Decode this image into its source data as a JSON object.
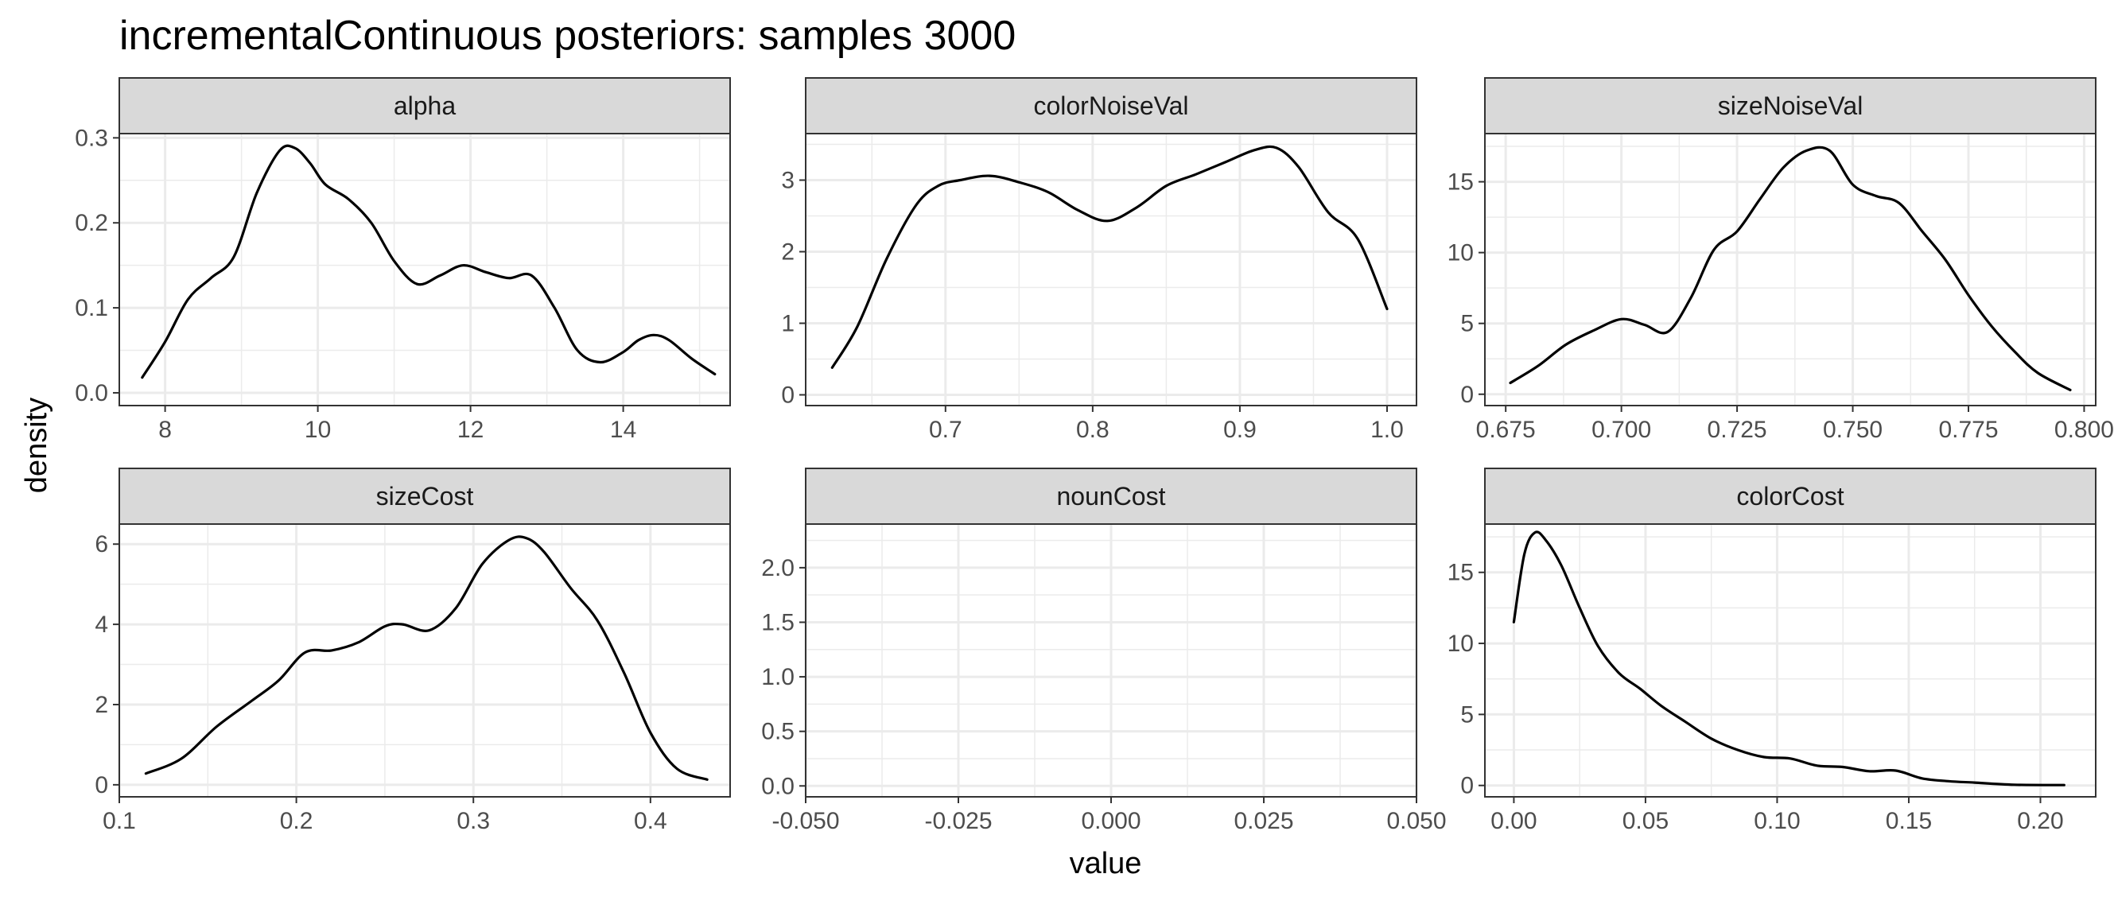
{
  "chart_data": {
    "type": "line",
    "title": "incrementalContinuous posteriors: samples 3000",
    "xlabel": "value",
    "ylabel": "density",
    "grid": true,
    "panels": [
      {
        "name": "alpha",
        "xlim": [
          7.4,
          15.4
        ],
        "ylim": [
          -0.015,
          0.305
        ],
        "xticks": [
          8,
          10,
          12,
          14
        ],
        "xtick_labels": [
          "8",
          "10",
          "12",
          "14"
        ],
        "yticks": [
          0,
          0.1,
          0.2,
          0.3
        ],
        "ytick_labels": [
          "0.0",
          "0.1",
          "0.2",
          "0.3"
        ],
        "series": [
          {
            "x": [
              7.7,
              8.0,
              8.3,
              8.6,
              8.9,
              9.2,
              9.5,
              9.7,
              9.9,
              10.1,
              10.4,
              10.7,
              11.0,
              11.3,
              11.6,
              11.9,
              12.2,
              12.5,
              12.8,
              13.1,
              13.4,
              13.7,
              14.0,
              14.2,
              14.4,
              14.6,
              14.9,
              15.2
            ],
            "y": [
              0.018,
              0.06,
              0.11,
              0.135,
              0.16,
              0.235,
              0.285,
              0.288,
              0.27,
              0.245,
              0.228,
              0.2,
              0.155,
              0.128,
              0.138,
              0.15,
              0.142,
              0.135,
              0.138,
              0.1,
              0.05,
              0.036,
              0.048,
              0.062,
              0.068,
              0.062,
              0.04,
              0.022
            ]
          }
        ]
      },
      {
        "name": "colorNoiseVal",
        "xlim": [
          0.605,
          1.02
        ],
        "ylim": [
          -0.15,
          3.65
        ],
        "xticks": [
          0.7,
          0.8,
          0.9,
          1.0
        ],
        "xtick_labels": [
          "0.7",
          "0.8",
          "0.9",
          "1.0"
        ],
        "yticks": [
          0,
          1,
          2,
          3
        ],
        "ytick_labels": [
          "0",
          "1",
          "2",
          "3"
        ],
        "series": [
          {
            "x": [
              0.623,
              0.64,
              0.66,
              0.68,
              0.695,
              0.71,
              0.73,
              0.75,
              0.77,
              0.79,
              0.81,
              0.83,
              0.85,
              0.87,
              0.89,
              0.91,
              0.925,
              0.94,
              0.96,
              0.98,
              1.0
            ],
            "y": [
              0.38,
              0.95,
              1.9,
              2.65,
              2.92,
              3.0,
              3.06,
              2.97,
              2.83,
              2.58,
              2.43,
              2.62,
              2.92,
              3.08,
              3.25,
              3.42,
              3.45,
              3.18,
              2.55,
              2.18,
              1.2
            ]
          }
        ]
      },
      {
        "name": "sizeNoiseVal",
        "xlim": [
          0.6705,
          0.8025
        ],
        "ylim": [
          -0.8,
          18.4
        ],
        "xticks": [
          0.675,
          0.7,
          0.725,
          0.75,
          0.775,
          0.8
        ],
        "xtick_labels": [
          "0.675",
          "0.700",
          "0.725",
          "0.750",
          "0.775",
          "0.800"
        ],
        "yticks": [
          0,
          5,
          10,
          15
        ],
        "ytick_labels": [
          "0",
          "5",
          "10",
          "15"
        ],
        "series": [
          {
            "x": [
              0.676,
              0.682,
              0.688,
              0.694,
              0.7,
              0.705,
              0.71,
              0.715,
              0.72,
              0.725,
              0.73,
              0.735,
              0.74,
              0.745,
              0.75,
              0.755,
              0.76,
              0.765,
              0.77,
              0.775,
              0.78,
              0.785,
              0.79,
              0.797
            ],
            "y": [
              0.8,
              2.0,
              3.5,
              4.5,
              5.3,
              4.9,
              4.4,
              6.8,
              10.2,
              11.5,
              13.8,
              16.0,
              17.2,
              17.2,
              14.8,
              14.0,
              13.5,
              11.5,
              9.5,
              7.0,
              4.8,
              3.0,
              1.5,
              0.3
            ]
          }
        ]
      },
      {
        "name": "sizeCost",
        "xlim": [
          0.1,
          0.445
        ],
        "ylim": [
          -0.3,
          6.5
        ],
        "xticks": [
          0.1,
          0.2,
          0.3,
          0.4
        ],
        "xtick_labels": [
          "0.1",
          "0.2",
          "0.3",
          "0.4"
        ],
        "yticks": [
          0,
          2,
          4,
          6
        ],
        "ytick_labels": [
          "0",
          "2",
          "4",
          "6"
        ],
        "series": [
          {
            "x": [
              0.115,
              0.135,
              0.155,
              0.175,
              0.19,
              0.205,
              0.22,
              0.235,
              0.25,
              0.26,
              0.275,
              0.29,
              0.305,
              0.32,
              0.33,
              0.34,
              0.355,
              0.37,
              0.385,
              0.4,
              0.415,
              0.432
            ],
            "y": [
              0.28,
              0.65,
              1.45,
              2.1,
              2.6,
              3.3,
              3.35,
              3.55,
              3.95,
              4.0,
              3.85,
              4.4,
              5.5,
              6.1,
              6.15,
              5.8,
              4.9,
              4.1,
              2.8,
              1.3,
              0.4,
              0.13
            ]
          }
        ]
      },
      {
        "name": "nounCost",
        "xlim": [
          -0.05,
          0.05
        ],
        "ylim": [
          -0.1,
          2.4
        ],
        "xticks": [
          -0.05,
          -0.025,
          0,
          0.025,
          0.05
        ],
        "xtick_labels": [
          "-0.050",
          "-0.025",
          "0.000",
          "0.025",
          "0.050"
        ],
        "yticks": [
          0,
          0.5,
          1.0,
          1.5,
          2.0
        ],
        "ytick_labels": [
          "0.0",
          "0.5",
          "1.0",
          "1.5",
          "2.0"
        ],
        "series": [
          {
            "x": [],
            "y": []
          }
        ]
      },
      {
        "name": "colorCost",
        "xlim": [
          -0.011,
          0.221
        ],
        "ylim": [
          -0.8,
          18.4
        ],
        "xticks": [
          0,
          0.05,
          0.1,
          0.15,
          0.2
        ],
        "xtick_labels": [
          "0.00",
          "0.05",
          "0.10",
          "0.15",
          "0.20"
        ],
        "yticks": [
          0,
          5,
          10,
          15
        ],
        "ytick_labels": [
          "0",
          "5",
          "10",
          "15"
        ],
        "series": [
          {
            "x": [
              0.0,
              0.004,
              0.008,
              0.012,
              0.018,
              0.025,
              0.032,
              0.04,
              0.048,
              0.056,
              0.065,
              0.075,
              0.085,
              0.095,
              0.105,
              0.115,
              0.125,
              0.135,
              0.145,
              0.155,
              0.165,
              0.175,
              0.19,
              0.209
            ],
            "y": [
              11.5,
              16.3,
              17.8,
              17.3,
              15.5,
              12.5,
              9.8,
              7.9,
              6.8,
              5.6,
              4.5,
              3.3,
              2.5,
              2.0,
              1.9,
              1.4,
              1.3,
              1.0,
              1.05,
              0.5,
              0.3,
              0.2,
              0.05,
              0.03
            ]
          }
        ]
      }
    ]
  }
}
